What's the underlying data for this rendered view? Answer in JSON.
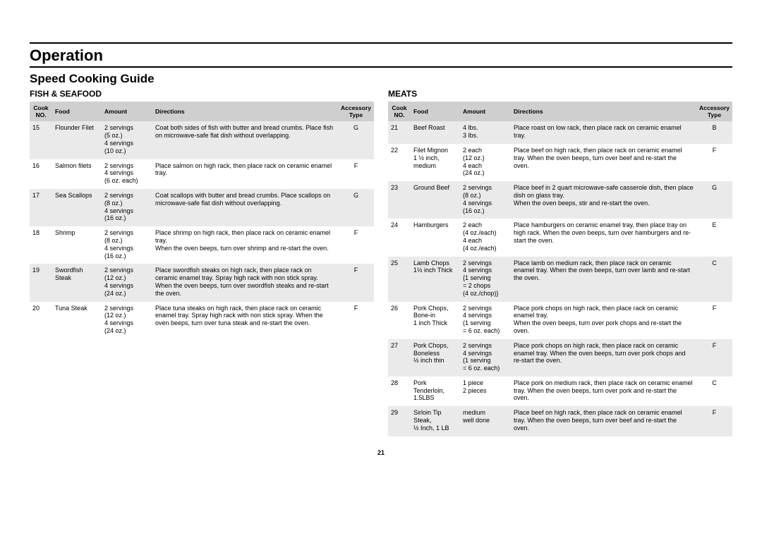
{
  "section_heading": "Operation",
  "guide_heading": "Speed Cooking Guide",
  "page_number": "21",
  "headers": {
    "cook_no": "Cook NO.",
    "food": "Food",
    "amount": "Amount",
    "directions": "Directions",
    "accessory": "Accessory Type"
  },
  "left": {
    "category": "FISH & SEAFOOD",
    "rows": [
      {
        "no": "15",
        "food": "Flounder Filet",
        "amount": "2 servings\n(5 oz.)\n4 servings\n(10 oz.)",
        "directions": "Coat both sides of fish with butter and bread crumbs. Place fish on microwave-safe flat dish without overlapping.",
        "acc": "G"
      },
      {
        "no": "16",
        "food": "Salmon filets",
        "amount": "2 servings\n4 servings\n(6 oz. each)",
        "directions": "Place salmon on high rack, then place rack on ceramic enamel tray.",
        "acc": "F"
      },
      {
        "no": "17",
        "food": "Sea Scallops",
        "amount": "2 servings\n(8 oz.)\n4 servings\n(16 oz.)",
        "directions": "Coat scallops with butter and bread crumbs. Place scallops on microwave-safe flat dish without overlapping.",
        "acc": "G"
      },
      {
        "no": "18",
        "food": "Shrimp",
        "amount": "2 servings\n(8 oz.)\n4 servings\n(16 oz.)",
        "directions": "Place shrimp on high rack, then place rack on ceramic enamel tray.\nWhen the oven beeps, turn over shrimp and re-start the oven.",
        "acc": "F"
      },
      {
        "no": "19",
        "food": "Swordfish Steak",
        "amount": "2 servings\n(12 oz.)\n4 servings\n(24 oz.)",
        "directions": "Place swordfish steaks on high rack, then place rack on ceramic enamel tray. Spray high rack with non stick spray. When the oven beeps, turn over swordfish steaks and re-start the oven.",
        "acc": "F"
      },
      {
        "no": "20",
        "food": "Tuna Steak",
        "amount": "2 servings\n(12 oz.)\n4 servings\n(24 oz.)",
        "directions": "Place tuna steaks on high rack, then place rack on ceramic enamel tray. Spray high rack with non stick spray. When the oven beeps, turn over tuna steak and re-start the oven.",
        "acc": "F"
      }
    ]
  },
  "right": {
    "category": "MEATS",
    "rows": [
      {
        "no": "21",
        "food": "Beef Roast",
        "amount": "4 lbs.\n3 lbs.",
        "directions": "Place roast on low rack, then place rack on ceramic enamel tray.",
        "acc": "B"
      },
      {
        "no": "22",
        "food": "Filet Mignon\n1 ½ inch, medium",
        "amount": "2 each\n(12 oz.)\n4 each\n(24 oz.)",
        "directions": "Place beef on high rack, then place rack on ceramic enamel tray. When the oven beeps, turn over beef and re-start the oven.",
        "acc": "F"
      },
      {
        "no": "23",
        "food": "Ground Beef",
        "amount": "2 servings\n(8 oz.)\n4 servings\n(16 oz.)",
        "directions": "Place beef in 2 quart microwave-safe casserole dish, then place dish on glass tray.\nWhen the oven beeps, stir and re-start the oven.",
        "acc": "G"
      },
      {
        "no": "24",
        "food": "Hamburgers",
        "amount": "2 each\n(4 oz./each)\n4 each\n(4 oz./each)",
        "directions": "Place hamburgers on ceramic enamel tray, then place tray on high rack. When the oven beeps, turn over hamburgers and re-start the oven.",
        "acc": "E"
      },
      {
        "no": "25",
        "food": "Lamb Chops\n1½ inch Thick",
        "amount": "2 servings\n4 servings\n{1 serving\n= 2 chops\n(4 oz./chop)}",
        "directions": "Place lamb on medium rack, then place rack on ceramic enamel tray. When the oven beeps, turn over lamb and re-start the oven.",
        "acc": "C"
      },
      {
        "no": "26",
        "food": "Pork Chops, Bone-in\n1 inch Thick",
        "amount": "2 servings\n4 servings\n(1 serving\n= 6 oz. each)",
        "directions": "Place pork chops on high rack, then place rack on ceramic enamel tray.\nWhen the oven beeps, turn over pork chops and re-start the oven.",
        "acc": "F"
      },
      {
        "no": "27",
        "food": "Pork Chops, Boneless\n½ inch thin",
        "amount": "2 servings\n4 servings\n(1 serving\n= 6 oz. each)",
        "directions": "Place pork chops on high rack, then place rack on ceramic enamel tray. When the oven beeps, turn over pork chops and re-start the oven.",
        "acc": "F"
      },
      {
        "no": "28",
        "food": "Pork Tenderloin, 1.5LBS",
        "amount": "1 piece\n2 pieces",
        "directions": "Place pork on medium rack, then place rack on ceramic enamel tray. When the oven beeps, turn over pork and re-start the oven.",
        "acc": "C"
      },
      {
        "no": "29",
        "food": "Sirloin Tip Steak,\n½ Inch, 1 LB",
        "amount": "medium\nwell done",
        "directions": "Place beef on high rack, then place rack on ceramic enamel tray. When the oven beeps, turn over beef and re-start the oven.",
        "acc": "F"
      }
    ]
  }
}
